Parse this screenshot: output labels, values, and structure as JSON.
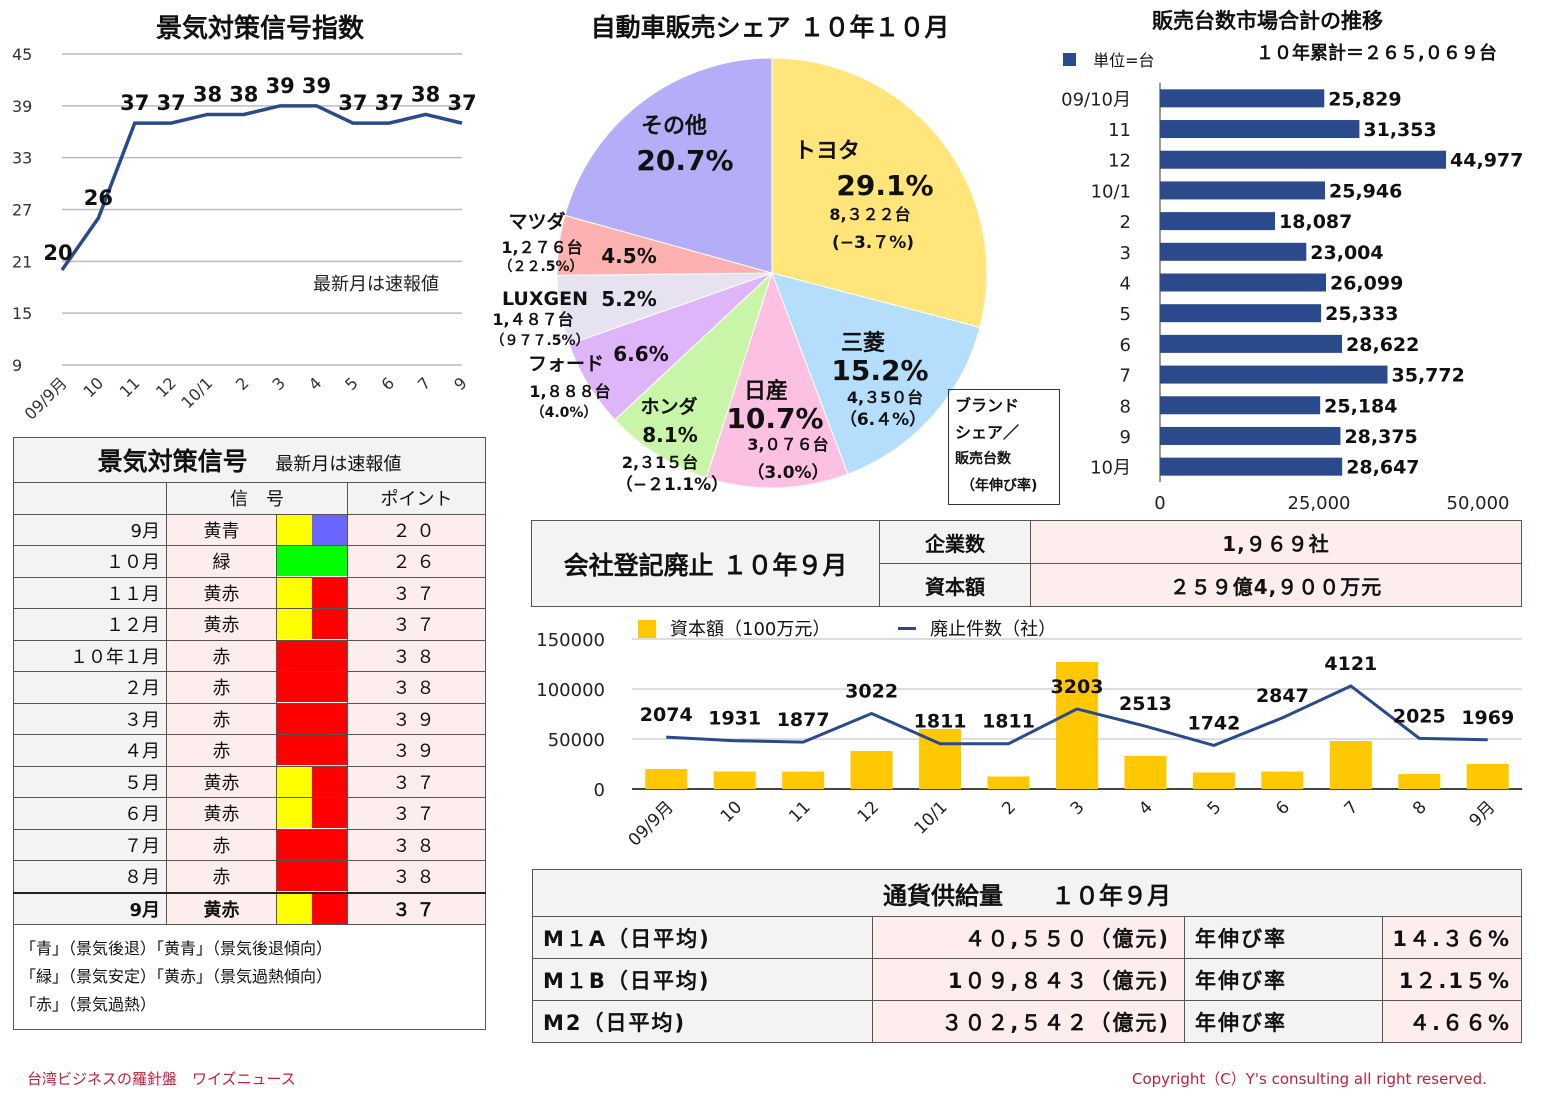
{
  "index_chart": {
    "title": "景気対策信号指数",
    "note": "最新月は速報値",
    "chart_data": {
      "type": "line",
      "categories": [
        "09/9月",
        "10",
        "11",
        "12",
        "10/1",
        "2",
        "3",
        "4",
        "5",
        "6",
        "7",
        "9"
      ],
      "values": [
        20,
        26,
        37,
        37,
        38,
        38,
        39,
        39,
        37,
        37,
        38,
        37
      ],
      "yticks": [
        45,
        39,
        33,
        27,
        21,
        15,
        9
      ],
      "ylim": [
        9,
        45
      ],
      "color": "#2b4a8b"
    }
  },
  "pie_chart": {
    "title": "自動車販売シェア １０年１０月",
    "legend_box": [
      "ブランド",
      "シェア／",
      "販売台数",
      "（年伸び率)"
    ],
    "chart_data": {
      "type": "pie",
      "slices": [
        {
          "name": "トヨタ",
          "pct": "29.1%",
          "value": 29.1,
          "units": "8,３２２台",
          "growth": "(−3.７%)",
          "color": "#ffe57a"
        },
        {
          "name": "三菱",
          "pct": "15.2%",
          "value": 15.2,
          "units": "4,３5０台",
          "growth": "（6.４%）",
          "color": "#b5defc"
        },
        {
          "name": "日産",
          "pct": "10.7%",
          "value": 10.7,
          "units": "3,０７６台",
          "growth": "（3.0%）",
          "color": "#fcc0e2"
        },
        {
          "name": "ホンダ",
          "pct": "8.1%",
          "value": 8.1,
          "units": "2,３1５台",
          "growth": "（−２1.1%）",
          "color": "#c8f5a7"
        },
        {
          "name": "フォード",
          "pct": "6.6%",
          "value": 6.6,
          "units": "1,８８８台",
          "growth": "（4.0%）",
          "color": "#deb5f8"
        },
        {
          "name": "LUXGEN",
          "pct": "5.2%",
          "value": 5.2,
          "units": "1,４８７台",
          "growth": "（９７７.5%）",
          "color": "#e6e2f2"
        },
        {
          "name": "マツダ",
          "pct": "4.5%",
          "value": 4.5,
          "units": "1,２７６台",
          "growth": "（２２.5%）",
          "color": "#fdb2b1"
        },
        {
          "name": "その他",
          "pct": "20.7%",
          "value": 20.7,
          "units": "",
          "growth": "",
          "color": "#b4aef8"
        }
      ]
    }
  },
  "sales_chart": {
    "title": "販売台数市場合計の推移",
    "legend": "単位=台",
    "cumulative": "１０年累計＝２６５,０６９台",
    "chart_data": {
      "type": "bar",
      "orientation": "horizontal",
      "categories": [
        "09/10月",
        "11",
        "12",
        "10/1",
        "2",
        "3",
        "4",
        "5",
        "6",
        "7",
        "8",
        "9",
        "10月"
      ],
      "values": [
        25829,
        31353,
        44977,
        25946,
        18087,
        23004,
        26099,
        25333,
        28622,
        35772,
        25184,
        28375,
        28647
      ],
      "labels": [
        "25,829",
        "31,353",
        "44,977",
        "25,946",
        "18,087",
        "23,004",
        "26,099",
        "25,333",
        "28,622",
        "35,772",
        "25,184",
        "28,375",
        "28,647"
      ],
      "xticks": [
        "0",
        "25,000",
        "50,000"
      ],
      "xlim": [
        0,
        50000
      ],
      "color": "#2b4a8b"
    }
  },
  "signal_table": {
    "title": "景気対策信号",
    "note": "最新月は速報値",
    "header_signal": "信　号",
    "header_point": "ポイント",
    "rows": [
      {
        "month": "9月",
        "label": "黄青",
        "colors": [
          "#ffff00",
          "#6b66ff"
        ],
        "point": "２０"
      },
      {
        "month": "１０月",
        "label": "緑",
        "colors": [
          "#00ff00"
        ],
        "point": "２６"
      },
      {
        "month": "１１月",
        "label": "黄赤",
        "colors": [
          "#ffff00",
          "#ff0000"
        ],
        "point": "３７"
      },
      {
        "month": "１２月",
        "label": "黄赤",
        "colors": [
          "#ffff00",
          "#ff0000"
        ],
        "point": "３７"
      },
      {
        "month": "１０年１月",
        "label": "赤",
        "colors": [
          "#ff0000"
        ],
        "point": "３８"
      },
      {
        "month": "２月",
        "label": "赤",
        "colors": [
          "#ff0000"
        ],
        "point": "３８"
      },
      {
        "month": "３月",
        "label": "赤",
        "colors": [
          "#ff0000"
        ],
        "point": "３９"
      },
      {
        "month": "４月",
        "label": "赤",
        "colors": [
          "#ff0000"
        ],
        "point": "３９"
      },
      {
        "month": "５月",
        "label": "黄赤",
        "colors": [
          "#ffff00",
          "#ff0000"
        ],
        "point": "３７"
      },
      {
        "month": "６月",
        "label": "黄赤",
        "colors": [
          "#ffff00",
          "#ff0000"
        ],
        "point": "３７"
      },
      {
        "month": "７月",
        "label": "赤",
        "colors": [
          "#ff0000"
        ],
        "point": "３８"
      },
      {
        "month": "８月",
        "label": "赤",
        "colors": [
          "#ff0000"
        ],
        "point": "３８"
      },
      {
        "month": "9月",
        "label": "黄赤",
        "colors": [
          "#ffff00",
          "#ff0000"
        ],
        "point": "３７"
      }
    ],
    "legend_lines": [
      "「青」（景気後退）「黄青」（景気後退傾向）",
      "「緑」（景気安定）「黄赤」（景気過熱傾向）",
      "「赤」（景気過熱）"
    ]
  },
  "registration": {
    "title": "会社登記廃止 １０年９月",
    "rows": [
      {
        "label": "企業数",
        "value": "1,９６９社"
      },
      {
        "label": "資本額",
        "value": "２５９億4,９００万元"
      }
    ]
  },
  "closure_chart": {
    "legend_bar": "資本額（100万元）",
    "legend_line": "廃止件数（社）",
    "chart_data": {
      "type": "bar+line",
      "categories": [
        "09/9月",
        "10",
        "11",
        "12",
        "10/1",
        "2",
        "3",
        "4",
        "5",
        "6",
        "7",
        "8",
        "9月"
      ],
      "capital": [
        20000,
        17500,
        17500,
        38000,
        60000,
        12500,
        127000,
        33000,
        16500,
        17500,
        48000,
        15000,
        25000
      ],
      "count": [
        2074,
        1931,
        1877,
        3022,
        1811,
        1811,
        3203,
        2513,
        1742,
        2847,
        4121,
        2025,
        1969
      ],
      "yticks": [
        "150000",
        "100000",
        "50000",
        "0"
      ],
      "ylim": [
        0,
        150000
      ],
      "bar_color": "#ffc800",
      "line_color": "#2b4a8b"
    }
  },
  "money_supply": {
    "title": "通貨供給量　　１０年９月",
    "rows": [
      {
        "name": "M１A（日平均)",
        "value": "４０,５５０（億元)",
        "rate_label": "年伸び率",
        "rate": "1４.３６%"
      },
      {
        "name": "M１B（日平均)",
        "value": "1０９,８４３（億元)",
        "rate_label": "年伸び率",
        "rate": "1２.1５%"
      },
      {
        "name": "M2（日平均)",
        "value": "３０２,５４２（億元)",
        "rate_label": "年伸び率",
        "rate": "４.６６%"
      }
    ]
  },
  "footer": {
    "left": "台湾ビジネスの羅針盤　ワイズニュース",
    "right": "Copyright（C）Y's consulting all right reserved.",
    "color": "#c0203a"
  }
}
